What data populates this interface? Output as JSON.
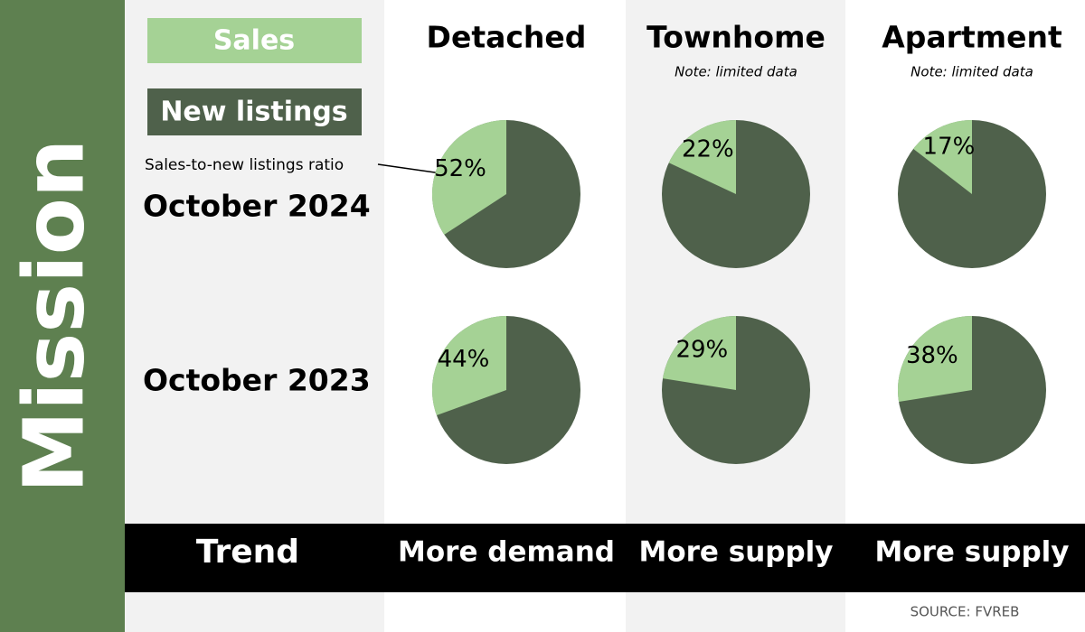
{
  "chart_data": {
    "type": "pie",
    "title": "Mission",
    "legend": [
      {
        "name": "Sales",
        "color": "#a5d295"
      },
      {
        "name": "New listings",
        "color": "#4f614b"
      }
    ],
    "annotation": "Sales-to-new listings ratio",
    "categories": [
      "Detached",
      "Townhome",
      "Apartment"
    ],
    "notes": [
      null,
      "Note: limited data",
      "Note: limited data"
    ],
    "series": [
      {
        "name": "October 2024",
        "values": [
          52,
          22,
          17
        ],
        "value_labels": [
          "52%",
          "22%",
          "17%"
        ]
      },
      {
        "name": "October 2023",
        "values": [
          44,
          29,
          38
        ],
        "value_labels": [
          "44%",
          "29%",
          "38%"
        ]
      }
    ],
    "trend_label": "Trend",
    "trends": [
      "More demand",
      "More supply",
      "More supply"
    ],
    "source": "SOURCE: FVREB"
  }
}
